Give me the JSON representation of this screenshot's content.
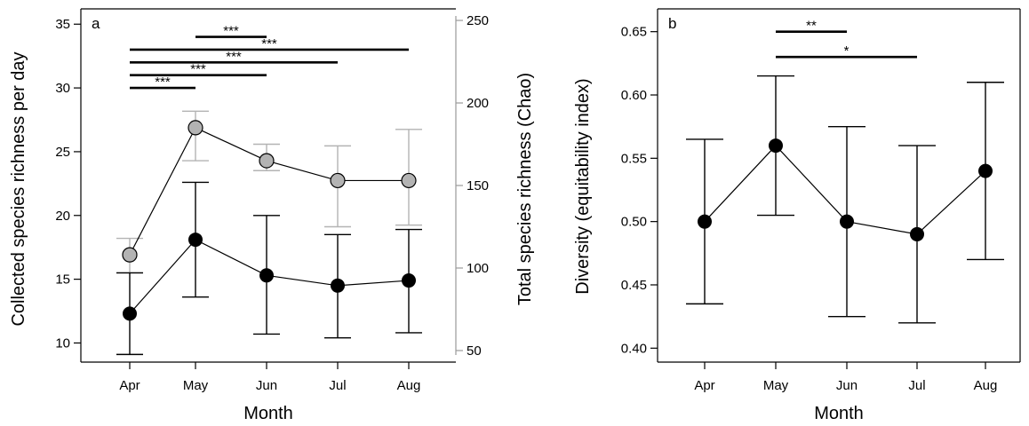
{
  "chart_data": [
    {
      "type": "line",
      "panel_label": "a",
      "categories": [
        "Apr",
        "May",
        "Jun",
        "Jul",
        "Aug"
      ],
      "xlabel": "Month",
      "ylabel": "Collected species richness per day",
      "y2label": "Total species richness (Chao)",
      "ylim": [
        8.5,
        36.2
      ],
      "y2lim": [
        43,
        257
      ],
      "yticks": [
        10,
        15,
        20,
        25,
        30,
        35
      ],
      "y2ticks": [
        50,
        100,
        150,
        200,
        250
      ],
      "colors": {
        "primary": "#000000",
        "secondary": "#b3b3b3",
        "secondary_axis": "#999999"
      },
      "series": [
        {
          "axis": "left",
          "values": [
            12.3,
            18.1,
            15.3,
            14.5,
            14.9
          ],
          "lower": [
            9.1,
            13.6,
            10.7,
            10.4,
            10.8
          ],
          "upper": [
            15.5,
            22.6,
            20.0,
            18.5,
            18.9
          ],
          "color": "#000000"
        },
        {
          "axis": "right",
          "values": [
            108,
            185,
            165,
            153,
            153
          ],
          "lower": [
            97,
            165,
            159,
            125,
            126
          ],
          "upper": [
            118,
            195,
            175,
            174,
            184
          ],
          "color": "#b3b3b3"
        }
      ],
      "significance": [
        {
          "from": "Apr",
          "to": "May",
          "level": 30,
          "label": "***"
        },
        {
          "from": "Apr",
          "to": "Jun",
          "level": 31,
          "label": "***"
        },
        {
          "from": "Apr",
          "to": "Jul",
          "level": 32,
          "label": "***"
        },
        {
          "from": "Apr",
          "to": "Aug",
          "level": 33,
          "label": "***"
        },
        {
          "from": "May",
          "to": "Jun",
          "level": 34,
          "label": "***"
        }
      ]
    },
    {
      "type": "line",
      "panel_label": "b",
      "categories": [
        "Apr",
        "May",
        "Jun",
        "Jul",
        "Aug"
      ],
      "xlabel": "Month",
      "ylabel": "Diversity (equitability index)",
      "ylim": [
        0.389,
        0.668
      ],
      "yticks": [
        "0.40",
        "0.45",
        "0.50",
        "0.55",
        "0.60",
        "0.65"
      ],
      "colors": {
        "primary": "#000000"
      },
      "series": [
        {
          "axis": "left",
          "values": [
            0.5,
            0.56,
            0.5,
            0.49,
            0.54
          ],
          "lower": [
            0.435,
            0.505,
            0.425,
            0.42,
            0.47
          ],
          "upper": [
            0.565,
            0.615,
            0.575,
            0.56,
            0.61
          ],
          "color": "#000000"
        }
      ],
      "significance": [
        {
          "from": "May",
          "to": "Jun",
          "level": 0.65,
          "label": "**"
        },
        {
          "from": "May",
          "to": "Jul",
          "level": 0.63,
          "label": "*"
        }
      ]
    }
  ]
}
